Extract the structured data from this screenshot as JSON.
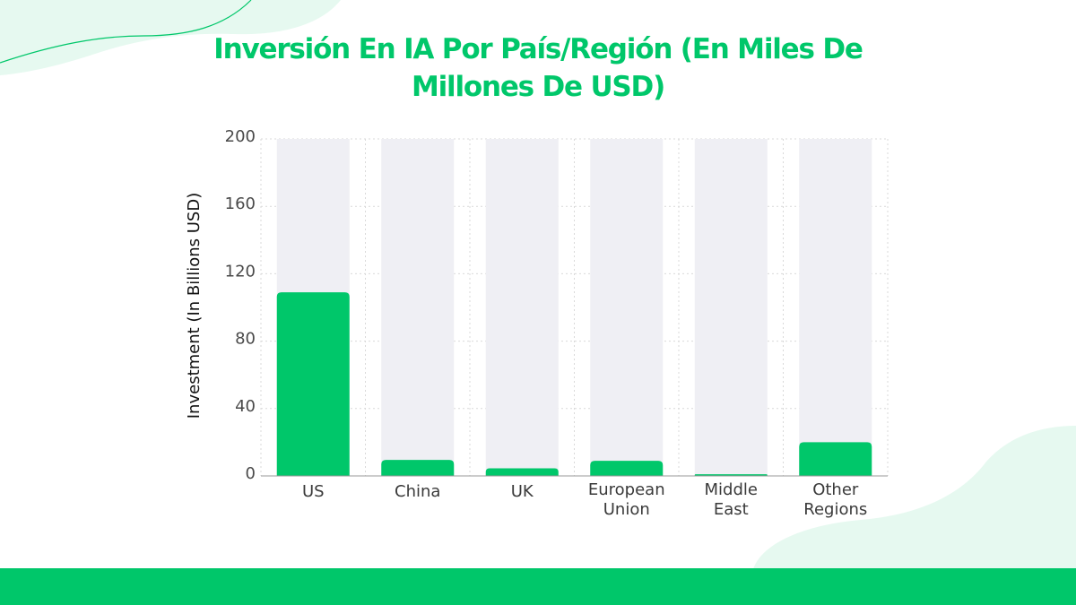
{
  "colors": {
    "accent": "#00c76a",
    "bar": "#00c76a",
    "bar_track": "#efeff4",
    "grid": "#d9d9d9",
    "blob": "#e6f9f0",
    "blob_line": "#00c76a"
  },
  "chart_data": {
    "type": "bar",
    "title": "Inversión En IA Por País/Región (En Miles De Millones De USD)",
    "title_lines": [
      "Inversión En IA Por País/Región (En Miles De",
      "Millones De USD)"
    ],
    "xlabel": "",
    "ylabel": "Investment (In Billions USD)",
    "categories": [
      "US",
      "China",
      "UK",
      "European Union",
      "Middle East",
      "Other Regions"
    ],
    "category_lines": [
      [
        "US"
      ],
      [
        "China"
      ],
      [
        "UK"
      ],
      [
        "European",
        "Union"
      ],
      [
        "Middle",
        "East"
      ],
      [
        "Other",
        "Regions"
      ]
    ],
    "values": [
      109,
      9.5,
      4.5,
      9,
      1,
      20
    ],
    "ylim": [
      0,
      200
    ],
    "yticks": [
      0,
      40,
      80,
      120,
      160,
      200
    ],
    "grid": true,
    "legend": "none"
  }
}
